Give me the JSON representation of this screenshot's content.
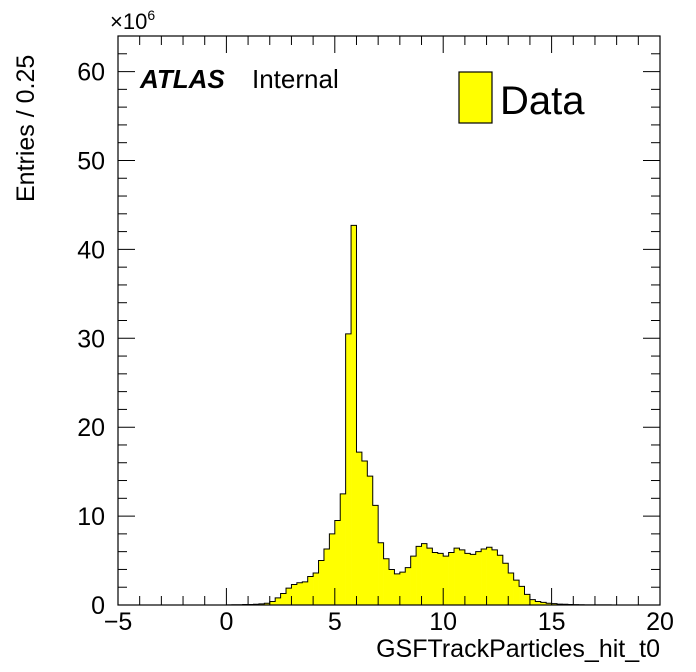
{
  "chart_data": {
    "type": "bar",
    "histogram": true,
    "xlabel": "GSFTrackParticles_hit_t0",
    "ylabel": "Entries / 0.25",
    "y_multiplier_label": "×10",
    "y_multiplier_exponent": "6",
    "xlim": [
      -5,
      20
    ],
    "ylim": [
      0,
      64
    ],
    "bin_width": 0.25,
    "x_ticks": [
      "−5",
      "0",
      "5",
      "10",
      "15",
      "20"
    ],
    "x_tick_values": [
      -5,
      0,
      5,
      10,
      15,
      20
    ],
    "y_ticks": [
      "0",
      "10",
      "20",
      "30",
      "40",
      "50",
      "60"
    ],
    "y_tick_values": [
      0,
      10,
      20,
      30,
      40,
      50,
      60
    ],
    "fill_color": "#ffff00",
    "line_color": "#000000",
    "grid": false,
    "legend": {
      "placement": "top-right",
      "entries": [
        {
          "label": "Data",
          "color": "#ffff00"
        }
      ]
    },
    "series": [
      {
        "name": "Data",
        "x_start": 0,
        "values": [
          0.02,
          0.03,
          0.03,
          0.05,
          0.05,
          0.08,
          0.12,
          0.2,
          0.4,
          0.8,
          1.3,
          1.9,
          2.3,
          2.5,
          2.6,
          3.2,
          3.6,
          5.0,
          6.3,
          8.0,
          9.5,
          12.5,
          30.5,
          42.7,
          17.2,
          16.2,
          14.5,
          11.2,
          7.0,
          5.2,
          4.0,
          3.5,
          3.7,
          4.2,
          5.5,
          6.6,
          6.9,
          6.4,
          5.9,
          5.8,
          5.5,
          5.9,
          6.4,
          6.2,
          5.8,
          5.7,
          6.0,
          6.3,
          6.5,
          6.2,
          5.6,
          4.7,
          3.6,
          2.8,
          2.1,
          1.2,
          0.6,
          0.4,
          0.3,
          0.2,
          0.15,
          0.1,
          0.08,
          0.05,
          0.04,
          0.03,
          0.02,
          0.02,
          0.01,
          0.01,
          0.01,
          0.005
        ]
      }
    ]
  },
  "labels": {
    "atlas": "ATLAS",
    "internal": "Internal",
    "legend_data": "Data"
  }
}
